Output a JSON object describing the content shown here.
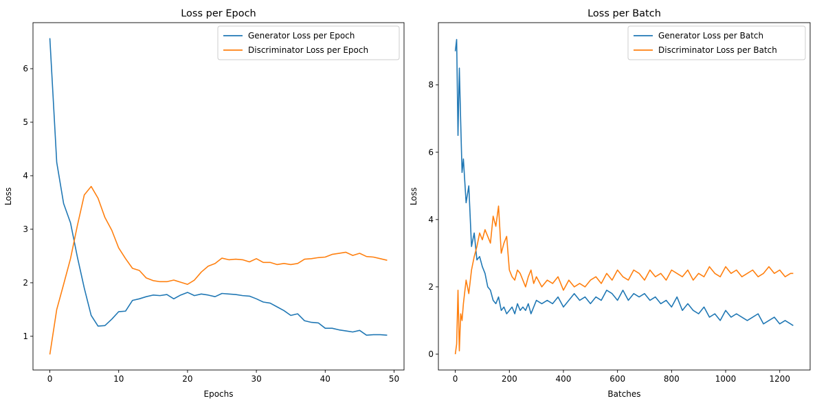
{
  "figure": {
    "panels": [
      "epoch",
      "batch"
    ]
  },
  "chart_data": [
    {
      "type": "line",
      "title": "Loss per Epoch",
      "xlabel": "Epochs",
      "ylabel": "Loss",
      "xlim": [
        -2.45,
        51.45
      ],
      "ylim": [
        0.37,
        6.86
      ],
      "xticks": [
        0,
        10,
        20,
        30,
        40,
        50
      ],
      "yticks": [
        1,
        2,
        3,
        4,
        5,
        6
      ],
      "grid": false,
      "legend": "upper right",
      "series": [
        {
          "name": "Generator Loss per Epoch",
          "color": "#1f77b4",
          "x": [
            0,
            1,
            2,
            3,
            4,
            5,
            6,
            7,
            8,
            9,
            10,
            11,
            12,
            13,
            14,
            15,
            16,
            17,
            18,
            19,
            20,
            21,
            22,
            23,
            24,
            25,
            26,
            27,
            28,
            29,
            30,
            31,
            32,
            33,
            34,
            35,
            36,
            37,
            38,
            39,
            40,
            41,
            42,
            43,
            44,
            45,
            46,
            47,
            48,
            49
          ],
          "y": [
            6.57,
            4.25,
            3.48,
            3.12,
            2.48,
            1.9,
            1.39,
            1.19,
            1.2,
            1.32,
            1.46,
            1.47,
            1.67,
            1.7,
            1.74,
            1.77,
            1.76,
            1.78,
            1.7,
            1.77,
            1.82,
            1.76,
            1.79,
            1.77,
            1.74,
            1.8,
            1.79,
            1.78,
            1.76,
            1.75,
            1.7,
            1.64,
            1.62,
            1.55,
            1.48,
            1.39,
            1.42,
            1.29,
            1.26,
            1.25,
            1.15,
            1.15,
            1.12,
            1.1,
            1.08,
            1.11,
            1.02,
            1.03,
            1.03,
            1.02
          ]
        },
        {
          "name": "Discriminator Loss per Epoch",
          "color": "#ff7f0e",
          "x": [
            0,
            1,
            2,
            3,
            4,
            5,
            6,
            7,
            8,
            9,
            10,
            11,
            12,
            13,
            14,
            15,
            16,
            17,
            18,
            19,
            20,
            21,
            22,
            23,
            24,
            25,
            26,
            27,
            28,
            29,
            30,
            31,
            32,
            33,
            34,
            35,
            36,
            37,
            38,
            39,
            40,
            41,
            42,
            43,
            44,
            45,
            46,
            47,
            48,
            49
          ],
          "y": [
            0.66,
            1.5,
            1.97,
            2.45,
            3.07,
            3.64,
            3.8,
            3.58,
            3.22,
            2.98,
            2.65,
            2.45,
            2.27,
            2.23,
            2.09,
            2.04,
            2.02,
            2.02,
            2.05,
            2.01,
            1.97,
            2.05,
            2.2,
            2.31,
            2.36,
            2.46,
            2.43,
            2.44,
            2.43,
            2.39,
            2.45,
            2.38,
            2.38,
            2.34,
            2.36,
            2.34,
            2.36,
            2.44,
            2.45,
            2.47,
            2.48,
            2.53,
            2.55,
            2.57,
            2.51,
            2.55,
            2.49,
            2.48,
            2.45,
            2.42
          ]
        }
      ]
    },
    {
      "type": "line",
      "title": "Loss per Batch",
      "xlabel": "Batches",
      "ylabel": "Loss",
      "xlim": [
        -62.5,
        1312.5
      ],
      "ylim": [
        -0.47,
        9.85
      ],
      "xticks": [
        0,
        200,
        400,
        600,
        800,
        1000,
        1200
      ],
      "yticks": [
        0,
        2,
        4,
        6,
        8
      ],
      "grid": false,
      "legend": "upper right",
      "series": [
        {
          "name": "Generator Loss per Batch",
          "color": "#1f77b4",
          "x": [
            0,
            5,
            10,
            15,
            20,
            25,
            30,
            40,
            50,
            60,
            70,
            80,
            90,
            100,
            110,
            120,
            130,
            140,
            150,
            160,
            170,
            180,
            190,
            200,
            210,
            220,
            230,
            240,
            250,
            260,
            270,
            280,
            290,
            300,
            320,
            340,
            360,
            380,
            400,
            420,
            440,
            460,
            480,
            500,
            520,
            540,
            560,
            580,
            600,
            620,
            640,
            660,
            680,
            700,
            720,
            740,
            760,
            780,
            800,
            820,
            840,
            860,
            880,
            900,
            920,
            940,
            960,
            980,
            1000,
            1020,
            1040,
            1060,
            1080,
            1100,
            1120,
            1140,
            1160,
            1180,
            1200,
            1220,
            1240,
            1250
          ],
          "y": [
            9.0,
            9.35,
            6.5,
            8.5,
            6.9,
            5.4,
            5.8,
            4.5,
            5.0,
            3.2,
            3.6,
            2.8,
            2.9,
            2.6,
            2.4,
            2.0,
            1.9,
            1.6,
            1.5,
            1.7,
            1.3,
            1.4,
            1.2,
            1.3,
            1.4,
            1.2,
            1.5,
            1.3,
            1.4,
            1.3,
            1.5,
            1.2,
            1.4,
            1.6,
            1.5,
            1.6,
            1.5,
            1.7,
            1.4,
            1.6,
            1.8,
            1.6,
            1.7,
            1.5,
            1.7,
            1.6,
            1.9,
            1.8,
            1.6,
            1.9,
            1.6,
            1.8,
            1.7,
            1.8,
            1.6,
            1.7,
            1.5,
            1.6,
            1.4,
            1.7,
            1.3,
            1.5,
            1.3,
            1.2,
            1.4,
            1.1,
            1.2,
            1.0,
            1.3,
            1.1,
            1.2,
            1.1,
            1.0,
            1.1,
            1.2,
            0.9,
            1.0,
            1.1,
            0.9,
            1.0,
            0.9,
            0.85
          ]
        },
        {
          "name": "Discriminator Loss per Batch",
          "color": "#ff7f0e",
          "x": [
            0,
            5,
            10,
            15,
            20,
            25,
            30,
            40,
            50,
            60,
            70,
            80,
            90,
            100,
            110,
            120,
            130,
            140,
            150,
            160,
            170,
            180,
            190,
            200,
            210,
            220,
            230,
            240,
            250,
            260,
            270,
            280,
            290,
            300,
            320,
            340,
            360,
            380,
            400,
            420,
            440,
            460,
            480,
            500,
            520,
            540,
            560,
            580,
            600,
            620,
            640,
            660,
            680,
            700,
            720,
            740,
            760,
            780,
            800,
            820,
            840,
            860,
            880,
            900,
            920,
            940,
            960,
            980,
            1000,
            1020,
            1040,
            1060,
            1080,
            1100,
            1120,
            1140,
            1160,
            1180,
            1200,
            1220,
            1240,
            1250
          ],
          "y": [
            0.0,
            0.3,
            1.9,
            0.1,
            1.2,
            1.0,
            1.5,
            2.2,
            1.8,
            2.5,
            2.9,
            3.2,
            3.6,
            3.4,
            3.7,
            3.5,
            3.3,
            4.1,
            3.8,
            4.4,
            3.0,
            3.3,
            3.5,
            2.5,
            2.3,
            2.2,
            2.5,
            2.4,
            2.2,
            2.0,
            2.3,
            2.5,
            2.1,
            2.3,
            2.0,
            2.2,
            2.1,
            2.3,
            1.9,
            2.2,
            2.0,
            2.1,
            2.0,
            2.2,
            2.3,
            2.1,
            2.4,
            2.2,
            2.5,
            2.3,
            2.2,
            2.5,
            2.4,
            2.2,
            2.5,
            2.3,
            2.4,
            2.2,
            2.5,
            2.4,
            2.3,
            2.5,
            2.2,
            2.4,
            2.3,
            2.6,
            2.4,
            2.3,
            2.6,
            2.4,
            2.5,
            2.3,
            2.4,
            2.5,
            2.3,
            2.4,
            2.6,
            2.4,
            2.5,
            2.3,
            2.4,
            2.4
          ]
        }
      ]
    }
  ]
}
